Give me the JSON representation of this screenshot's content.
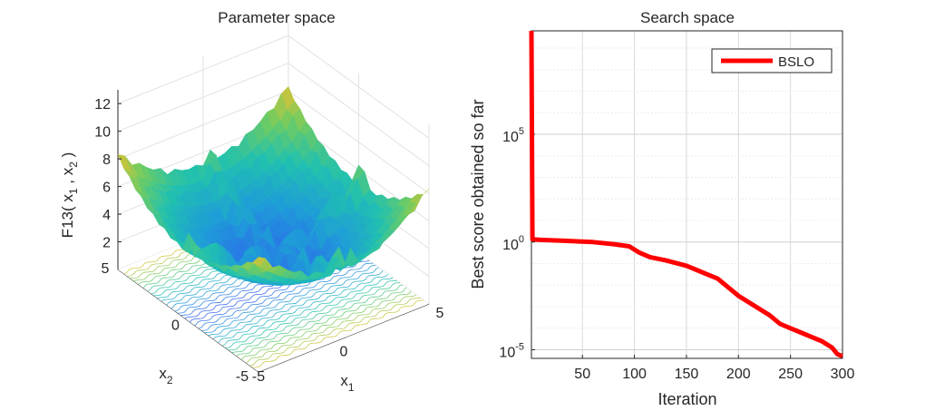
{
  "chart_data": [
    {
      "type": "surface",
      "title": "Parameter space",
      "xlabel": "x",
      "xlabel_sub": "1",
      "ylabel": "x",
      "ylabel_sub": "2",
      "zlabel": {
        "pre": "F13( x",
        "s1": "1",
        "mid": " , x",
        "s2": "2",
        "post": " )"
      },
      "x_ticks": [
        "-5",
        "0",
        "5"
      ],
      "y_ticks": [
        "-5",
        "0",
        "5"
      ],
      "z_ticks": [
        "2",
        "4",
        "6",
        "8",
        "10",
        "12"
      ],
      "xlim": [
        -5,
        5
      ],
      "ylim": [
        -5,
        5
      ],
      "zlim": [
        0,
        13
      ],
      "colormap": [
        "#3e26a8",
        "#2f5ff0",
        "#1e9cd8",
        "#20c0b0",
        "#70cc60",
        "#e6c230",
        "#f9fb0e"
      ],
      "grid": true
    },
    {
      "type": "line",
      "title": "Search space",
      "xlabel": "Iteration",
      "ylabel": "Best score obtained so far",
      "x_ticks": [
        "50",
        "100",
        "150",
        "200",
        "250",
        "300"
      ],
      "y_ticks": [
        {
          "base": "10",
          "exp": "-5",
          "value": -5
        },
        {
          "base": "10",
          "exp": "0",
          "value": 0
        },
        {
          "base": "10",
          "exp": "5",
          "value": 5
        }
      ],
      "yscale": "log",
      "xlim": [
        1,
        300
      ],
      "ylog_lim": [
        -5.4,
        9.8
      ],
      "grid": true,
      "legend_position": "top-right",
      "series": [
        {
          "name": "BSLO",
          "color": "#ff0000",
          "x": [
            1,
            2,
            3,
            10,
            30,
            60,
            80,
            95,
            105,
            115,
            130,
            150,
            170,
            180,
            190,
            200,
            210,
            220,
            230,
            240,
            250,
            260,
            270,
            280,
            290,
            295,
            300
          ],
          "log10_y": [
            9.8,
            0.13,
            0.12,
            0.1,
            0.06,
            0.0,
            -0.1,
            -0.2,
            -0.5,
            -0.7,
            -0.85,
            -1.1,
            -1.5,
            -1.7,
            -2.1,
            -2.5,
            -2.8,
            -3.1,
            -3.4,
            -3.8,
            -4.0,
            -4.2,
            -4.4,
            -4.6,
            -4.9,
            -5.2,
            -5.3
          ]
        }
      ]
    }
  ]
}
